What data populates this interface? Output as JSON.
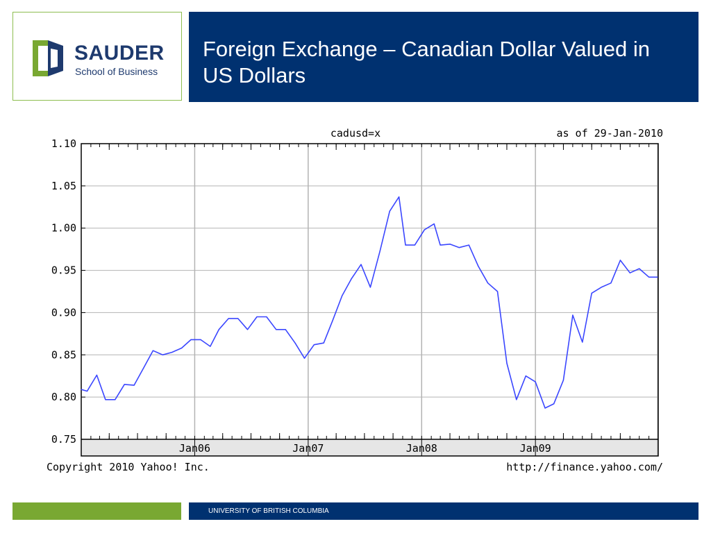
{
  "logo": {
    "word": "SAUDER",
    "sub": "School of Business"
  },
  "header": {
    "title": "Foreign Exchange – Canadian Dollar Valued in US Dollars"
  },
  "footer": {
    "text": "UNIVERSITY OF BRITISH COLUMBIA"
  },
  "colors": {
    "brand_blue": "#003170",
    "brand_green": "#79a832",
    "line": "#3a46ff"
  },
  "chart_data": {
    "type": "line",
    "title": "cadusd=x",
    "subtitle": "as of 29-Jan-2010",
    "copyright": "Copyright 2010 Yahoo! Inc.",
    "source_url": "http://finance.yahoo.com/",
    "xlabel": "",
    "ylabel": "",
    "ylim": [
      0.75,
      1.1
    ],
    "yticks": [
      "1.10",
      "1.05",
      "1.00",
      "0.95",
      "0.90",
      "0.85",
      "0.80",
      "0.75"
    ],
    "ytick_values": [
      1.1,
      1.05,
      1.0,
      0.95,
      0.9,
      0.85,
      0.8,
      0.75
    ],
    "xlim": [
      "2005-01-01",
      "2010-01-31"
    ],
    "xticks": [
      {
        "label": "Jan06",
        "date": "2006-01-01"
      },
      {
        "label": "Jan07",
        "date": "2007-01-01"
      },
      {
        "label": "Jan08",
        "date": "2008-01-01"
      },
      {
        "label": "Jan09",
        "date": "2009-01-01"
      }
    ],
    "grid": true,
    "series": [
      {
        "x": [
          "2005-01-01",
          "2005-01-20",
          "2005-02-20",
          "2005-03-20",
          "2005-04-20",
          "2005-05-20",
          "2005-06-20",
          "2005-07-20",
          "2005-08-20",
          "2005-09-20",
          "2005-10-20",
          "2005-11-20",
          "2005-12-20",
          "2006-01-20",
          "2006-02-20",
          "2006-03-20",
          "2006-04-20",
          "2006-05-20",
          "2006-06-20",
          "2006-07-20",
          "2006-08-20",
          "2006-09-20",
          "2006-10-20",
          "2006-11-20",
          "2006-12-20",
          "2007-01-20",
          "2007-02-20",
          "2007-03-20",
          "2007-04-20",
          "2007-05-20",
          "2007-06-20",
          "2007-07-20",
          "2007-08-20",
          "2007-09-20",
          "2007-10-20",
          "2007-11-10",
          "2007-12-10",
          "2008-01-10",
          "2008-02-10",
          "2008-03-01",
          "2008-04-01",
          "2008-05-01",
          "2008-06-01",
          "2008-07-01",
          "2008-08-01",
          "2008-09-01",
          "2008-10-01",
          "2008-11-01",
          "2008-12-01",
          "2009-01-01",
          "2009-02-01",
          "2009-03-01",
          "2009-04-01",
          "2009-05-01",
          "2009-06-01",
          "2009-07-01",
          "2009-08-01",
          "2009-09-01",
          "2009-10-01",
          "2009-11-01",
          "2009-12-01",
          "2010-01-01",
          "2010-01-29"
        ],
        "values": [
          0.809,
          0.807,
          0.826,
          0.797,
          0.797,
          0.815,
          0.814,
          0.834,
          0.855,
          0.85,
          0.853,
          0.858,
          0.868,
          0.868,
          0.86,
          0.88,
          0.893,
          0.893,
          0.88,
          0.895,
          0.895,
          0.88,
          0.88,
          0.864,
          0.846,
          0.862,
          0.864,
          0.89,
          0.92,
          0.94,
          0.957,
          0.93,
          0.973,
          1.02,
          1.037,
          0.98,
          0.98,
          0.998,
          1.005,
          0.98,
          0.981,
          0.977,
          0.98,
          0.955,
          0.935,
          0.925,
          0.84,
          0.797,
          0.825,
          0.818,
          0.787,
          0.792,
          0.82,
          0.897,
          0.865,
          0.923,
          0.93,
          0.935,
          0.962,
          0.947,
          0.952,
          0.942,
          0.942
        ]
      }
    ]
  }
}
